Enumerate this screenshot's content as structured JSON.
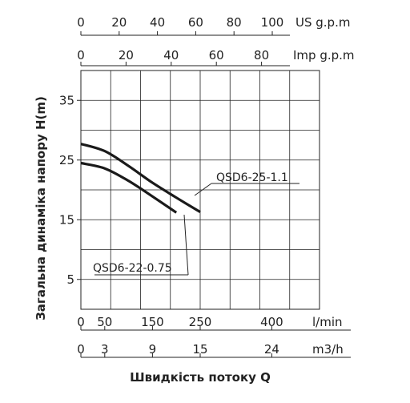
{
  "chart_data": {
    "type": "line",
    "title": "",
    "xlabel": "Швидкість потоку Q",
    "ylabel": "Загальна динаміка напору H(m)",
    "xlim": [
      0,
      500
    ],
    "ylim": [
      0,
      40
    ],
    "grid": true,
    "y_ticks": [
      "5",
      "15",
      "25",
      "35"
    ],
    "y_tick_values": [
      5,
      15,
      25,
      35
    ],
    "axes": {
      "lmin": {
        "unit": "l/min",
        "ticks": [
          "0",
          "50",
          "150",
          "250",
          "400"
        ],
        "values": [
          0,
          50,
          150,
          250,
          400
        ]
      },
      "m3h": {
        "unit": "m3/h",
        "ticks": [
          "0",
          "3",
          "9",
          "15",
          "24"
        ],
        "values": [
          0,
          3,
          9,
          15,
          24
        ]
      },
      "us_gpm": {
        "unit": "US g.p.m",
        "ticks": [
          "0",
          "20",
          "40",
          "60",
          "80",
          "100"
        ],
        "values": [
          0,
          20,
          40,
          60,
          80,
          100
        ]
      },
      "imp_gpm": {
        "unit": "Imp g.p.m",
        "ticks": [
          "0",
          "20",
          "40",
          "60",
          "80"
        ],
        "values": [
          0,
          20,
          40,
          60,
          80
        ]
      }
    },
    "series": [
      {
        "name": "QSD6-25-1.1",
        "x": [
          0,
          50,
          100,
          150,
          200,
          250
        ],
        "y": [
          27.7,
          26.5,
          24.0,
          21.2,
          18.7,
          16.3
        ]
      },
      {
        "name": "QSD6-22-0.75",
        "x": [
          0,
          50,
          100,
          150,
          200
        ],
        "y": [
          24.5,
          23.6,
          21.5,
          18.9,
          16.2
        ]
      }
    ]
  }
}
